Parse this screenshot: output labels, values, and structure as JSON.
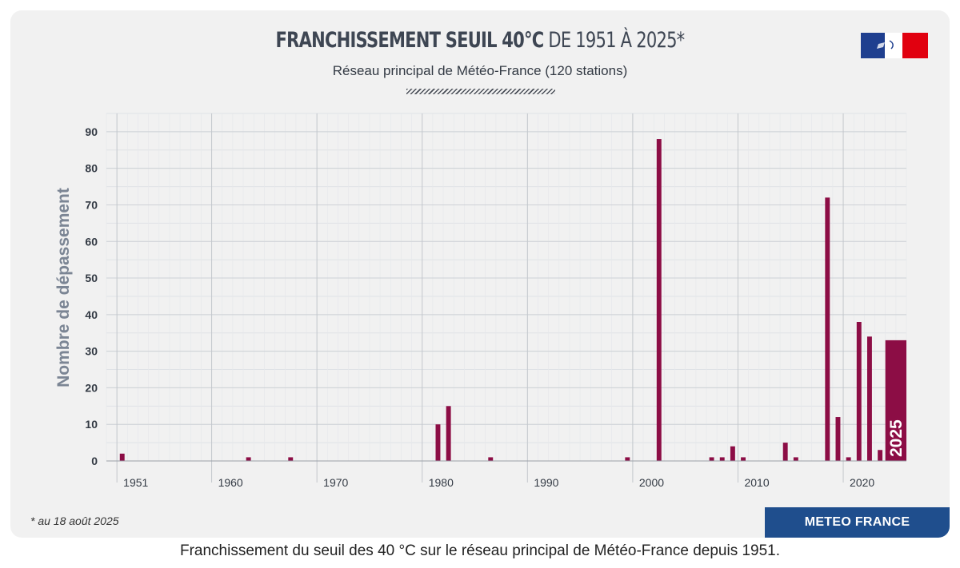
{
  "header": {
    "title_bold": "FRANCHISSEMENT SEUIL 40°C",
    "title_light": "DE 1951 À 2025*",
    "subtitle": "Réseau principal de Météo-France (120 stations)"
  },
  "footnote": "* au 18 août 2025",
  "brand_label": "METEO FRANCE",
  "caption": "Franchissement du seuil des 40 °C sur le réseau principal de Météo-France depuis 1951.",
  "colors": {
    "bar": "#8c0d45",
    "panel": "#f1f1f1",
    "brand": "#1f4e8d"
  },
  "chart_data": {
    "type": "bar",
    "title": "FRANCHISSEMENT SEUIL 40°C DE 1951 À 2025*",
    "ylabel": "Nombre de dépassement",
    "xlabel": "",
    "xlim": [
      1950,
      2025
    ],
    "ylim": [
      0,
      95
    ],
    "yticks": [
      0,
      10,
      20,
      30,
      40,
      50,
      60,
      70,
      80,
      90
    ],
    "xticks": [
      1951,
      1960,
      1970,
      1980,
      1990,
      2000,
      2010,
      2020
    ],
    "grid": true,
    "highlight_label": "2025",
    "x": [
      1951,
      1963,
      1967,
      1981,
      1982,
      1986,
      1999,
      2002,
      2007,
      2008,
      2009,
      2010,
      2014,
      2015,
      2018,
      2019,
      2020,
      2021,
      2022,
      2023,
      2025
    ],
    "values": [
      2,
      1,
      1,
      10,
      15,
      1,
      1,
      88,
      1,
      1,
      4,
      1,
      5,
      1,
      72,
      12,
      1,
      38,
      34,
      3,
      33
    ]
  }
}
